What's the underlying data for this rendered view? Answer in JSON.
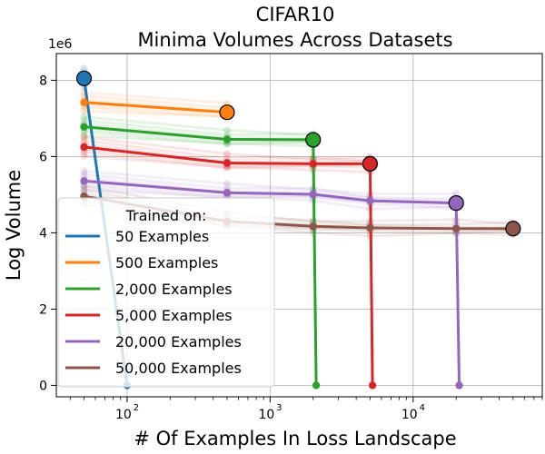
{
  "chart_data": {
    "type": "line",
    "title": "CIFAR10",
    "subtitle": "Minima Volumes Across Datasets",
    "xlabel": "# Of Examples In Loss Landscape",
    "ylabel": "Log Volume",
    "y_scale_label": "1e6",
    "x_scale": "log",
    "xlim": [
      32,
      80000
    ],
    "ylim": [
      -0.3,
      8.7
    ],
    "x_ticks": [
      100,
      1000,
      10000
    ],
    "x_tick_labels": [
      "10",
      "10",
      "10"
    ],
    "x_tick_exponents": [
      "2",
      "3",
      "4"
    ],
    "y_ticks": [
      0,
      2,
      4,
      6,
      8
    ],
    "y_tick_labels": [
      "0",
      "2",
      "4",
      "6",
      "8"
    ],
    "grid": true,
    "legend": {
      "title": "Trained on:",
      "position": "lower-left"
    },
    "series": [
      {
        "name": "50 Examples",
        "color": "#1f77b4",
        "x": [
          50,
          100
        ],
        "y": [
          8.05,
          0.0
        ],
        "trained_on": 50,
        "endpoint_y": 8.05
      },
      {
        "name": "500 Examples",
        "color": "#ff7f0e",
        "x": [
          50,
          500
        ],
        "y": [
          7.42,
          7.16
        ],
        "trained_on": 500,
        "endpoint_y": 7.16
      },
      {
        "name": "2,000 Examples",
        "color": "#2ca02c",
        "x": [
          50,
          500,
          2000,
          2100
        ],
        "y": [
          6.78,
          6.45,
          6.44,
          0.0
        ],
        "trained_on": 2000,
        "endpoint_y": 6.44
      },
      {
        "name": "5,000 Examples",
        "color": "#d62728",
        "x": [
          50,
          500,
          2000,
          5000,
          5200
        ],
        "y": [
          6.25,
          5.83,
          5.81,
          5.81,
          0.0
        ],
        "trained_on": 5000,
        "endpoint_y": 5.81
      },
      {
        "name": "20,000 Examples",
        "color": "#9467bd",
        "x": [
          50,
          500,
          2000,
          5000,
          20000,
          21000
        ],
        "y": [
          5.36,
          5.05,
          5.01,
          4.84,
          4.78,
          0.0
        ],
        "trained_on": 20000,
        "endpoint_y": 4.78
      },
      {
        "name": "50,000 Examples",
        "color": "#8c564b",
        "x": [
          50,
          500,
          2000,
          5000,
          20000,
          50000
        ],
        "y": [
          4.96,
          4.3,
          4.17,
          4.13,
          4.11,
          4.11
        ],
        "trained_on": 50000,
        "endpoint_y": 4.11
      }
    ]
  }
}
